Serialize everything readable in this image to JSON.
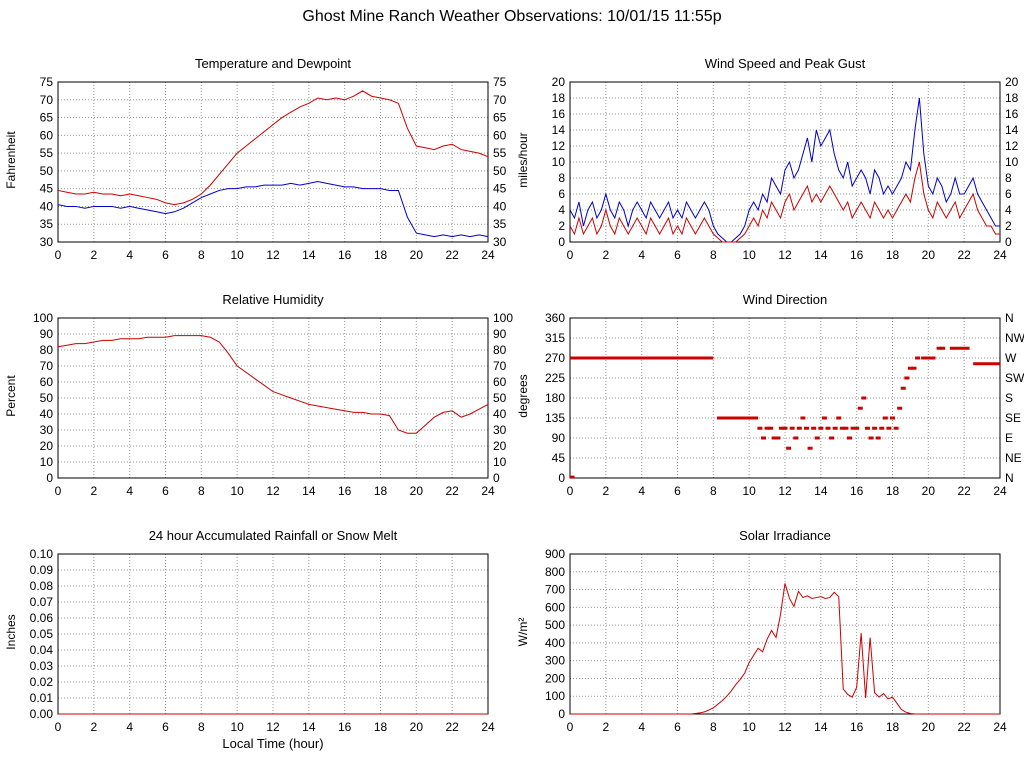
{
  "page_title": "Ghost Mine Ranch Weather Observations: 10/01/15 11:55p",
  "x_axis": {
    "label": "Local Time (hour)",
    "min": 0,
    "max": 24,
    "ticks": [
      0,
      2,
      4,
      6,
      8,
      10,
      12,
      14,
      16,
      18,
      20,
      22,
      24
    ]
  },
  "colors": {
    "series_red": "#cc0000",
    "series_blue": "#0000cc",
    "grid": "#999999",
    "frame": "#000000"
  },
  "chart_data": [
    {
      "type": "line",
      "title": "Temperature and Dewpoint",
      "ylabel": "Fahrenheit",
      "ylim": [
        30,
        75
      ],
      "yticks": [
        30,
        35,
        40,
        45,
        50,
        55,
        60,
        65,
        70,
        75
      ],
      "y_decimals": 0,
      "right_labels": "mirror",
      "series": [
        {
          "name": "Temperature",
          "color": "#cc0000",
          "x_start": 0,
          "x_step": 0.5,
          "values": [
            44.5,
            44,
            43.5,
            43.5,
            44,
            43.5,
            43.5,
            43,
            43.5,
            43,
            42.5,
            42,
            41,
            40.5,
            41,
            42,
            43.5,
            46,
            49,
            52,
            55,
            57,
            59,
            61,
            63,
            65,
            66.5,
            68,
            69,
            70.5,
            70,
            70.5,
            70,
            71,
            72.5,
            71,
            70.5,
            70,
            69,
            62,
            57,
            56.5,
            56,
            57,
            57.5,
            56,
            55.5,
            55,
            54
          ]
        },
        {
          "name": "Dewpoint",
          "color": "#0000cc",
          "x_start": 0,
          "x_step": 0.5,
          "values": [
            40.5,
            40,
            40,
            39.5,
            40,
            40,
            40,
            39.5,
            40,
            39.5,
            39,
            38.5,
            38,
            38.5,
            39.5,
            41,
            42.5,
            43.5,
            44.5,
            45,
            45,
            45.5,
            45.5,
            46,
            46,
            46,
            46.5,
            46,
            46.5,
            47,
            46.5,
            46,
            45.5,
            45.5,
            45,
            45,
            45,
            44.5,
            44.5,
            37,
            32.5,
            32,
            31.5,
            32,
            31.5,
            32,
            31.5,
            32,
            31.5
          ]
        }
      ]
    },
    {
      "type": "line",
      "title": "Wind Speed and Peak Gust",
      "ylabel": "miles/hour",
      "ylim": [
        0,
        20
      ],
      "yticks": [
        0,
        2,
        4,
        6,
        8,
        10,
        12,
        14,
        16,
        18,
        20
      ],
      "y_decimals": 0,
      "right_labels": "mirror",
      "series": [
        {
          "name": "Peak Gust",
          "color": "#0000cc",
          "x_start": 0,
          "x_step": 0.25,
          "values": [
            4,
            3,
            5,
            2,
            4,
            5,
            3,
            4,
            6,
            4,
            3,
            5,
            4,
            2,
            4,
            5,
            4,
            3,
            5,
            4,
            3,
            4,
            5,
            3,
            4,
            3,
            5,
            4,
            3,
            4,
            5,
            4,
            2,
            1,
            0.5,
            0,
            0,
            0.5,
            1,
            2,
            4,
            5,
            4,
            6,
            5,
            8,
            7,
            6,
            9,
            10,
            8,
            9,
            11,
            13,
            10,
            14,
            12,
            13,
            14,
            11,
            9,
            8,
            10,
            7,
            8,
            9,
            8,
            6,
            9,
            8,
            6,
            7,
            6,
            7,
            8,
            10,
            9,
            14,
            18,
            11,
            7,
            6,
            8,
            7,
            5,
            6,
            8,
            6,
            6,
            7,
            8,
            6,
            5,
            4,
            3,
            2,
            2
          ]
        },
        {
          "name": "Wind Speed",
          "color": "#cc0000",
          "x_start": 0,
          "x_step": 0.25,
          "values": [
            2,
            1,
            3,
            1,
            2,
            3,
            1,
            2,
            4,
            2,
            1,
            3,
            2,
            1,
            2,
            3,
            2,
            1,
            3,
            2,
            1,
            2,
            3,
            1,
            2,
            1,
            3,
            2,
            1,
            2,
            3,
            2,
            1,
            0.5,
            0,
            0,
            0,
            0,
            0.5,
            1,
            2,
            3,
            2,
            4,
            3,
            5,
            4,
            3,
            5,
            6,
            4,
            5,
            6,
            7,
            5,
            6,
            5,
            6,
            7,
            6,
            5,
            4,
            5,
            3,
            4,
            5,
            4,
            3,
            5,
            4,
            3,
            4,
            3,
            4,
            5,
            6,
            5,
            8,
            10,
            6,
            4,
            3,
            5,
            4,
            3,
            4,
            5,
            3,
            4,
            5,
            6,
            4,
            3,
            2,
            2,
            1,
            1
          ]
        }
      ]
    },
    {
      "type": "line",
      "title": "Relative Humidity",
      "ylabel": "Percent",
      "ylim": [
        0,
        100
      ],
      "yticks": [
        0,
        10,
        20,
        30,
        40,
        50,
        60,
        70,
        80,
        90,
        100
      ],
      "y_decimals": 0,
      "right_labels": "mirror",
      "series": [
        {
          "name": "Relative Humidity",
          "color": "#cc0000",
          "x_start": 0,
          "x_step": 0.5,
          "values": [
            82,
            83,
            84,
            84,
            85,
            86,
            86,
            87,
            87,
            87,
            88,
            88,
            88,
            89,
            89,
            89,
            89,
            88,
            85,
            78,
            70,
            66,
            62,
            58,
            54,
            52,
            50,
            48,
            46,
            45,
            44,
            43,
            42,
            41,
            41,
            40,
            40,
            39,
            30,
            28,
            28,
            33,
            38,
            41,
            42,
            38,
            40,
            43,
            46
          ]
        }
      ]
    },
    {
      "type": "scatter",
      "title": "Wind Direction",
      "ylabel": "degrees",
      "ylim": [
        0,
        360
      ],
      "yticks": [
        0,
        45,
        90,
        135,
        180,
        225,
        270,
        315,
        360
      ],
      "y_decimals": 0,
      "right_labels": [
        "N",
        "NE",
        "E",
        "SE",
        "S",
        "SW",
        "W",
        "NW",
        "N"
      ],
      "series": [
        {
          "name": "Wind Direction",
          "color": "#cc0000",
          "points": [
            [
              10.6,
              112
            ],
            [
              10.8,
              90
            ],
            [
              11,
              112
            ],
            [
              11.2,
              112
            ],
            [
              11.4,
              90
            ],
            [
              11.6,
              90
            ],
            [
              11.8,
              112
            ],
            [
              12,
              112
            ],
            [
              12.2,
              67
            ],
            [
              12.4,
              112
            ],
            [
              12.6,
              90
            ],
            [
              12.8,
              112
            ],
            [
              13,
              135
            ],
            [
              13.2,
              112
            ],
            [
              13.4,
              67
            ],
            [
              13.6,
              112
            ],
            [
              13.8,
              90
            ],
            [
              14,
              112
            ],
            [
              14.2,
              135
            ],
            [
              14.4,
              112
            ],
            [
              14.6,
              90
            ],
            [
              14.8,
              112
            ],
            [
              15,
              135
            ],
            [
              15.2,
              112
            ],
            [
              15.4,
              112
            ],
            [
              15.6,
              90
            ],
            [
              15.8,
              112
            ],
            [
              16,
              112
            ],
            [
              16.2,
              157
            ],
            [
              16.4,
              180
            ],
            [
              16.6,
              112
            ],
            [
              16.8,
              90
            ],
            [
              17,
              112
            ],
            [
              17.2,
              90
            ],
            [
              17.4,
              112
            ],
            [
              17.6,
              135
            ],
            [
              17.8,
              112
            ],
            [
              18,
              135
            ],
            [
              18.2,
              112
            ],
            [
              18.4,
              157
            ],
            [
              18.6,
              202
            ],
            [
              18.8,
              225
            ],
            [
              19,
              247
            ],
            [
              19.2,
              247
            ],
            [
              19.4,
              270
            ],
            [
              20.6,
              292
            ],
            [
              20.8,
              292
            ]
          ],
          "segments": [
            [
              0,
              8,
              270
            ],
            [
              8.2,
              10.5,
              135
            ],
            [
              19.6,
              20.4,
              270
            ],
            [
              21.2,
              22.3,
              292
            ],
            [
              22.5,
              24,
              257
            ],
            [
              0,
              0.25,
              2
            ]
          ]
        }
      ]
    },
    {
      "type": "line",
      "title": "24 hour Accumulated Rainfall or Snow Melt",
      "ylabel": "Inches",
      "ylim": [
        0,
        0.1
      ],
      "yticks": [
        0,
        0.01,
        0.02,
        0.03,
        0.04,
        0.05,
        0.06,
        0.07,
        0.08,
        0.09,
        0.1
      ],
      "y_decimals": 2,
      "right_labels": null,
      "series": [
        {
          "name": "Rainfall",
          "color": "#cc0000",
          "x_start": 0,
          "x_step": 24,
          "values": [
            0,
            0
          ]
        }
      ]
    },
    {
      "type": "line",
      "title": "Solar Irradiance",
      "ylabel": "W/m²",
      "ylim": [
        0,
        900
      ],
      "yticks": [
        0,
        100,
        200,
        300,
        400,
        500,
        600,
        700,
        800,
        900
      ],
      "y_decimals": 0,
      "right_labels": null,
      "series": [
        {
          "name": "Solar Irradiance",
          "color": "#cc0000",
          "x_start": 0,
          "x_step": 0.25,
          "values": [
            0,
            0,
            0,
            0,
            0,
            0,
            0,
            0,
            0,
            0,
            0,
            0,
            0,
            0,
            0,
            0,
            0,
            0,
            0,
            0,
            0,
            0,
            0,
            0,
            0,
            0,
            0,
            0,
            3,
            6,
            12,
            22,
            35,
            55,
            75,
            100,
            130,
            165,
            195,
            230,
            290,
            330,
            370,
            350,
            420,
            470,
            430,
            560,
            735,
            650,
            605,
            690,
            655,
            665,
            650,
            655,
            660,
            650,
            655,
            685,
            660,
            140,
            110,
            95,
            150,
            455,
            90,
            430,
            120,
            95,
            115,
            85,
            95,
            60,
            25,
            10,
            3,
            0,
            0,
            0,
            0,
            0,
            0,
            0,
            0,
            0,
            0,
            0,
            0,
            0,
            0,
            0,
            0,
            0,
            0,
            0,
            0
          ]
        }
      ]
    }
  ]
}
